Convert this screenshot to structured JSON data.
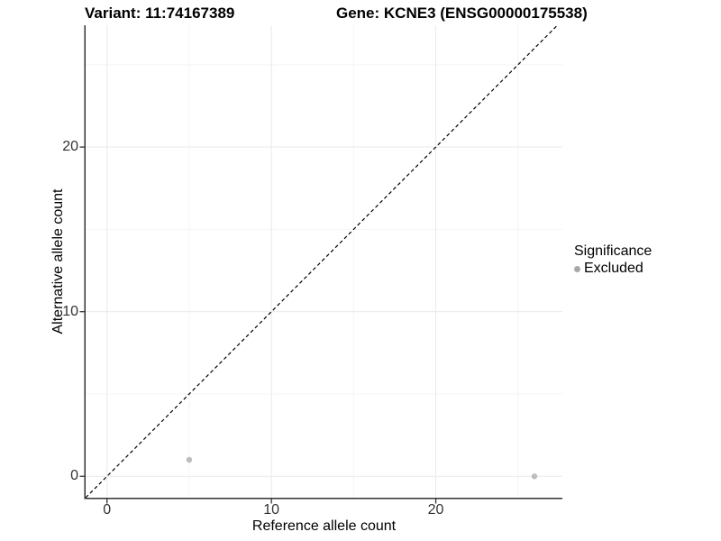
{
  "titles": {
    "left": "Variant: 11:74167389",
    "right": "Gene: KCNE3 (ENSG00000175538)"
  },
  "chart_data": {
    "type": "scatter",
    "xlabel": "Reference allele count",
    "ylabel": "Alternative allele count",
    "xlim": [
      -1.3,
      27.7
    ],
    "ylim": [
      -1.3,
      27.4
    ],
    "x_ticks": [
      0,
      10,
      20
    ],
    "y_ticks": [
      0,
      10,
      20
    ],
    "x_minor_ticks": [
      5,
      15,
      25
    ],
    "y_minor_ticks": [
      5,
      15,
      25
    ],
    "grid": true,
    "series": [
      {
        "name": "Excluded",
        "color": "#bdbdbd",
        "point_radius": 3.2,
        "points": [
          [
            5,
            1
          ],
          [
            26,
            0
          ]
        ]
      }
    ],
    "reference_line": {
      "type": "identity",
      "equation": "y = x",
      "style": "dashed",
      "color": "#000000"
    },
    "legend": {
      "title": "Significance",
      "position": "right",
      "items": [
        {
          "label": "Excluded",
          "color": "#a9a9a9"
        }
      ]
    },
    "colors": {
      "background": "#ffffff",
      "grid_major": "#e9e9e9",
      "grid_minor": "#f4f4f4",
      "axis_line": "#333333",
      "tick": "#333333",
      "axis_text": "#333333"
    }
  }
}
